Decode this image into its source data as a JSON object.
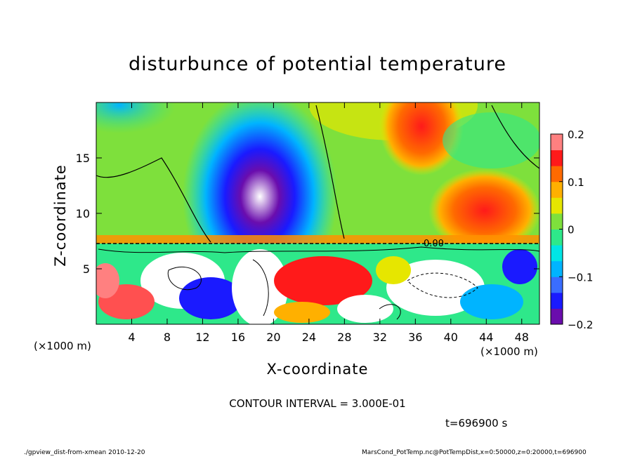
{
  "chart_data": {
    "type": "heatmap",
    "title": "disturbunce of potential temperature",
    "xlabel": "X-coordinate",
    "ylabel": "Z-coordinate",
    "x_unit_label": "(×1000 m)",
    "x_ticks": [
      4,
      8,
      12,
      16,
      20,
      24,
      28,
      32,
      36,
      40,
      44,
      48
    ],
    "y_ticks": [
      5,
      10,
      15
    ],
    "xlim": [
      0,
      50
    ],
    "ylim": [
      0,
      20
    ],
    "colorbar": {
      "ticks": [
        "0.2",
        "0.1",
        "0",
        "−0.1",
        "−0.2"
      ],
      "values": [
        0.2,
        0.1,
        0,
        -0.1,
        -0.2
      ],
      "range": [
        -0.2,
        0.2
      ],
      "colors": [
        "#6a0dad",
        "#1a1aff",
        "#3a6dff",
        "#00b4ff",
        "#00e5e5",
        "#2ee88a",
        "#7ee03c",
        "#e6e600",
        "#ffb000",
        "#ff6a00",
        "#ff1a1a",
        "#ff8080"
      ]
    },
    "contour_label": "0.00",
    "contour_interval": "CONTOUR INTERVAL = 3.000E-01",
    "time": "t=696900 s"
  },
  "footer": {
    "left": "./gpview_dist-from-xmean  2010-12-20",
    "right": "MarsCond_PotTemp.nc@PotTempDist,x=0:50000,z=0:20000,t=696900"
  }
}
